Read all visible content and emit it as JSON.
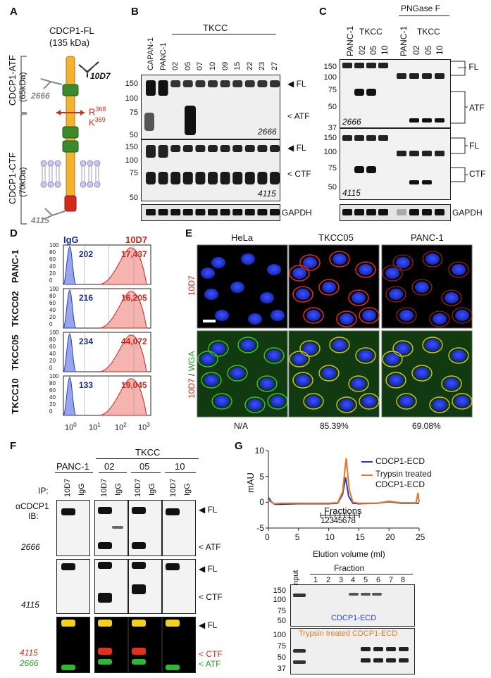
{
  "panels": {
    "A": "A",
    "B": "B",
    "C": "C",
    "D": "D",
    "E": "E",
    "F": "F",
    "G": "G"
  },
  "panelA": {
    "title": "CDCP1-FL",
    "title_kda": "(135 kDa)",
    "atf_label": "CDCP1-ATF",
    "atf_kda": "(65kDa)",
    "ctf_label": "CDCP1-CTF",
    "ctf_kda": "(70kDa)",
    "ab_10d7": "10D7",
    "ab_2666": "2666",
    "ab_4115": "4115",
    "r_label": "R",
    "r_sup": "368",
    "k_label": "K",
    "k_sup": "369"
  },
  "panelB": {
    "lanes": [
      "CAPAN-1",
      "PANC-1",
      "02",
      "05",
      "07",
      "10",
      "09",
      "15",
      "22",
      "23",
      "27"
    ],
    "group": "TKCC",
    "mw_top": [
      "150",
      "100",
      "75",
      "50"
    ],
    "mw_mid": [
      "150",
      "100",
      "75",
      "50"
    ],
    "fl": "FL",
    "atf": "ATF",
    "ctf": "CTF",
    "ab_top": "2666",
    "ab_mid": "4115",
    "gapdh": "GAPDH"
  },
  "panelC": {
    "lanes_left": [
      "PANC-1",
      "02",
      "05",
      "10"
    ],
    "lanes_right": [
      "PANC-1",
      "02",
      "05",
      "10"
    ],
    "group_left": "TKCC",
    "group_right": "TKCC",
    "pngase": "PNGase F",
    "mw_top": [
      "150",
      "100",
      "75",
      "50",
      "37"
    ],
    "mw_mid": [
      "150",
      "100",
      "75",
      "50",
      "37"
    ],
    "fl": "FL",
    "atf": "ATF",
    "ctf": "CTF",
    "ab_top": "2666",
    "ab_mid": "4115",
    "gapdh": "GAPDH"
  },
  "panelD": {
    "rows": [
      {
        "name": "PANC-1",
        "igg": "202",
        "val": "17,437"
      },
      {
        "name": "TKCC02",
        "igg": "216",
        "val": "16,205"
      },
      {
        "name": "TKCC05",
        "igg": "234",
        "val": "44,072"
      },
      {
        "name": "TKCC10",
        "igg": "133",
        "val": "19,045"
      }
    ],
    "igg_label": "IgG",
    "ab_label": "10D7",
    "yticks": [
      "100",
      "80",
      "60",
      "40",
      "20",
      "0"
    ],
    "xticks": [
      "10",
      "0",
      "10",
      "1",
      "10",
      "2",
      "10",
      "3"
    ]
  },
  "panelE": {
    "cols": [
      "HeLa",
      "TKCC05",
      "PANC-1"
    ],
    "row1_label": "10D7",
    "row2_label_a": "10D7",
    "row2_label_b": " / ",
    "row2_label_c": "WGA",
    "percents": [
      "N/A",
      "85.39%",
      "69.08%"
    ]
  },
  "panelF": {
    "panc": "PANC-1",
    "tkcc": "TKCC",
    "groups": [
      "02",
      "05",
      "10"
    ],
    "ip_label": "IP:",
    "ab_label": "αCDCP1",
    "ib_label": "IB:",
    "lane_10d7": "10D7",
    "lane_igg": "IgG",
    "ab_2666": "2666",
    "ab_4115": "4115",
    "ab_4115_b": "4115",
    "ab_2666_b": "2666",
    "fl": "FL",
    "atf": "ATF",
    "ctf": "CTF"
  },
  "panelG": {
    "chart_data": {
      "type": "line",
      "ylabel": "mAU",
      "xlabel": "Elution volume (ml)",
      "xlim": [
        0,
        25
      ],
      "ylim": [
        -5,
        10
      ],
      "xticks": [
        "0",
        "5",
        "10",
        "15",
        "20",
        "25"
      ],
      "yticks": [
        "10",
        "5",
        "0",
        "-5"
      ],
      "fractions_label": "Fractions",
      "fraction_numbers": "12345678",
      "series": [
        {
          "name": "CDCP1-ECD",
          "color": "#1f3fbf",
          "x": [
            0,
            0.5,
            1,
            2,
            5,
            10,
            11.5,
            12.3,
            12.8,
            13.3,
            14,
            15,
            18,
            20,
            22,
            24.5,
            25
          ],
          "y": [
            0.9,
            0.1,
            -0.4,
            -0.4,
            -0.3,
            -0.3,
            -0.2,
            1.5,
            4.8,
            1.2,
            -0.2,
            -0.3,
            -0.2,
            0.1,
            -0.2,
            -0.2,
            -0.2
          ]
        },
        {
          "name": "Trypsin treated CDCP1-ECD",
          "color": "#e8771c",
          "x": [
            0,
            0.5,
            1,
            2,
            5,
            10,
            11.5,
            12.3,
            12.9,
            13.4,
            14,
            15,
            18,
            20,
            22,
            24.5,
            24.8,
            25
          ],
          "y": [
            0.4,
            0.0,
            -0.3,
            -0.2,
            -0.2,
            -0.2,
            -0.1,
            2.0,
            8.5,
            2.5,
            0.0,
            -0.2,
            -0.2,
            0.2,
            -0.1,
            -0.1,
            1.8,
            0.0
          ]
        }
      ],
      "legend_1": "CDCP1-ECD",
      "legend_2a": "Trypsin treated",
      "legend_2b": "CDCP1-ECD"
    },
    "gel_input": "Input",
    "gel_fraction": "Fraction",
    "gel_lanes": [
      "1",
      "2",
      "3",
      "4",
      "5",
      "6",
      "7",
      "8"
    ],
    "mw_top": [
      "150",
      "100",
      "75",
      "50"
    ],
    "mw_bot": [
      "100",
      "75",
      "50",
      "37"
    ],
    "gel_top_label": "CDCP1-ECD",
    "gel_bot_label": "Trypsin treated CDCP1-ECD",
    "blue": "#2a3fc8",
    "orange": "#e07b1f"
  }
}
